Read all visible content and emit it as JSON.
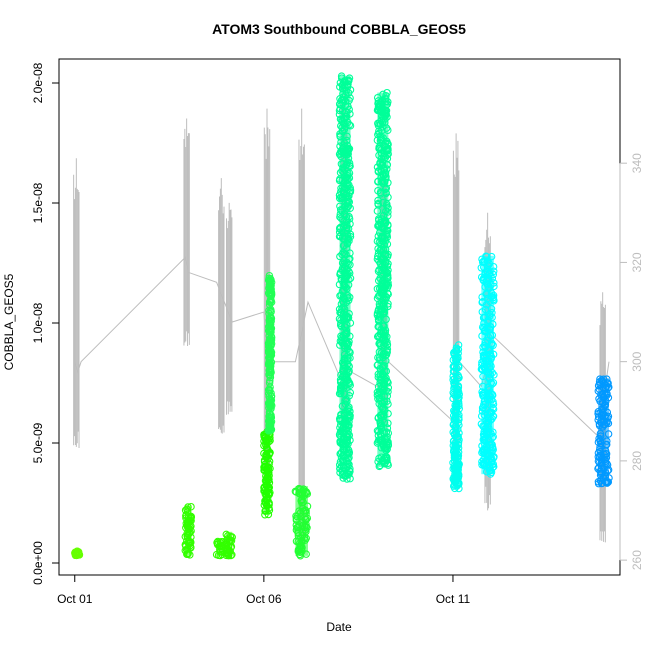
{
  "chart_data": {
    "type": "scatter",
    "title": "ATOM3 Southbound COBBLA_GEOS5",
    "xlabel": "Date",
    "ylabel": "COBBLA_GEOS5",
    "x_ticks": [
      "Oct 01",
      "Oct 06",
      "Oct 11"
    ],
    "y_ticks": [
      "0.0e+00",
      "5.0e-09",
      "1.0e-08",
      "1.5e-08",
      "2.0e-08"
    ],
    "y_right_ticks": [
      "260",
      "280",
      "300",
      "320",
      "340"
    ],
    "xlim": [
      "2016-09-30T14:00",
      "2016-10-15T10:00"
    ],
    "ylim": [
      -5e-10,
      2.1e-08
    ],
    "y_right_lim": [
      257,
      361
    ],
    "grid": false,
    "series": [
      {
        "role": "primary",
        "marker": "open-circle",
        "clusters": [
          {
            "x_start": "2016-10-01T00:00",
            "x_end": "2016-10-01T03:00",
            "y_min": 3e-10,
            "y_max": 5e-10,
            "color": "#66ff00"
          },
          {
            "x_start": "2016-10-03T22:00",
            "x_end": "2016-10-04T02:00",
            "y_min": 3e-10,
            "y_max": 2.4e-09,
            "color": "#33ff00"
          },
          {
            "x_start": "2016-10-04T18:00",
            "x_end": "2016-10-04T23:00",
            "y_min": 3e-10,
            "y_max": 9e-10,
            "color": "#33ff00"
          },
          {
            "x_start": "2016-10-05T00:00",
            "x_end": "2016-10-05T04:00",
            "y_min": 3e-10,
            "y_max": 1.3e-09,
            "color": "#33ff00"
          },
          {
            "x_start": "2016-10-06T00:00",
            "x_end": "2016-10-06T04:00",
            "y_min": 2e-09,
            "y_max": 5.5e-09,
            "color": "#22ff00"
          },
          {
            "x_start": "2016-10-06T03:00",
            "x_end": "2016-10-06T05:00",
            "y_min": 5.5e-09,
            "y_max": 1.2e-08,
            "color": "#22ff55"
          },
          {
            "x_start": "2016-10-06T20:00",
            "x_end": "2016-10-07T04:00",
            "y_min": 3e-10,
            "y_max": 3.2e-09,
            "color": "#22ff33"
          },
          {
            "x_start": "2016-10-08T00:00",
            "x_end": "2016-10-08T07:00",
            "y_min": 3.5e-09,
            "y_max": 2.03e-08,
            "color": "#00ff99"
          },
          {
            "x_start": "2016-10-09T00:00",
            "x_end": "2016-10-09T07:00",
            "y_min": 4e-09,
            "y_max": 1.96e-08,
            "color": "#00ff99"
          },
          {
            "x_start": "2016-10-11T00:00",
            "x_end": "2016-10-11T04:00",
            "y_min": 3.1e-09,
            "y_max": 9.1e-09,
            "color": "#00ffee"
          },
          {
            "x_start": "2016-10-11T18:00",
            "x_end": "2016-10-12T02:00",
            "y_min": 3.7e-09,
            "y_max": 1.28e-08,
            "color": "#00ffff"
          },
          {
            "x_start": "2016-10-14T20:00",
            "x_end": "2016-10-15T03:00",
            "y_min": 3.3e-09,
            "y_max": 7.7e-09,
            "color": "#0099ff"
          }
        ]
      },
      {
        "role": "secondary",
        "axis": "right",
        "color": "#bdbdbd",
        "marker": "line",
        "x": [
          "2016-10-01T00:00",
          "2016-10-01T02:00",
          "2016-10-01T04:00",
          "2016-10-03T22:00",
          "2016-10-04T00:00",
          "2016-10-04T18:00",
          "2016-10-05T04:00",
          "2016-10-06T00:00",
          "2016-10-06T02:00",
          "2016-10-06T20:00",
          "2016-10-07T04:00",
          "2016-10-08T00:00",
          "2016-10-08T07:00",
          "2016-10-09T00:00",
          "2016-10-09T07:00",
          "2016-10-11T00:00",
          "2016-10-11T04:00",
          "2016-10-11T18:00",
          "2016-10-12T02:00",
          "2016-10-14T20:00",
          "2016-10-15T03:00"
        ],
        "y": [
          300,
          298,
          300,
          321,
          318,
          316,
          308,
          310,
          300,
          300,
          312,
          297,
          298,
          295,
          300,
          288,
          300,
          295,
          305,
          285,
          300
        ],
        "ranges": [
          {
            "x": "2016-10-01T01:00",
            "y_min": 282,
            "y_max": 341
          },
          {
            "x": "2016-10-03T23:00",
            "y_min": 303,
            "y_max": 349
          },
          {
            "x": "2016-10-04T21:00",
            "y_min": 285,
            "y_max": 337
          },
          {
            "x": "2016-10-05T02:00",
            "y_min": 289,
            "y_max": 332
          },
          {
            "x": "2016-10-06T02:00",
            "y_min": 275,
            "y_max": 351
          },
          {
            "x": "2016-10-07T00:00",
            "y_min": 262,
            "y_max": 351
          },
          {
            "x": "2016-10-08T03:00",
            "y_min": 282,
            "y_max": 356
          },
          {
            "x": "2016-10-09T04:00",
            "y_min": 285,
            "y_max": 344
          },
          {
            "x": "2016-10-11T02:00",
            "y_min": 275,
            "y_max": 346
          },
          {
            "x": "2016-10-11T22:00",
            "y_min": 270,
            "y_max": 330
          },
          {
            "x": "2016-10-14T23:00",
            "y_min": 263,
            "y_max": 314
          }
        ]
      }
    ]
  }
}
